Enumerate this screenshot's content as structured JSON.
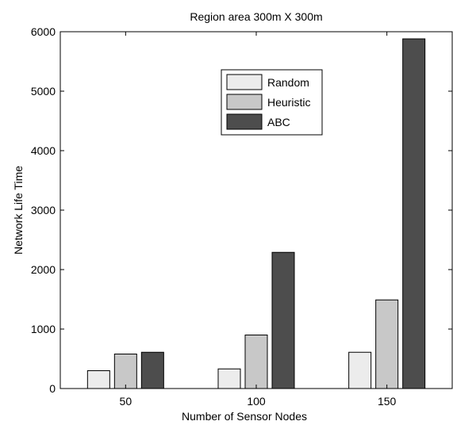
{
  "chart_data": {
    "type": "bar",
    "title": "Region area 300m X 300m",
    "xlabel": "Number of Sensor Nodes",
    "ylabel": "Network Life Time",
    "categories": [
      "50",
      "100",
      "150"
    ],
    "series": [
      {
        "name": "Random",
        "values": [
          300,
          330,
          610
        ],
        "color": "#ececec"
      },
      {
        "name": "Heuristic",
        "values": [
          580,
          900,
          1490
        ],
        "color": "#c8c8c8"
      },
      {
        "name": "ABC",
        "values": [
          610,
          2290,
          5880
        ],
        "color": "#4d4d4d"
      }
    ],
    "ylim": [
      0,
      6000
    ],
    "yticks": [
      0,
      1000,
      2000,
      3000,
      4000,
      5000,
      6000
    ],
    "grid": false,
    "legend_position": "top-center"
  }
}
